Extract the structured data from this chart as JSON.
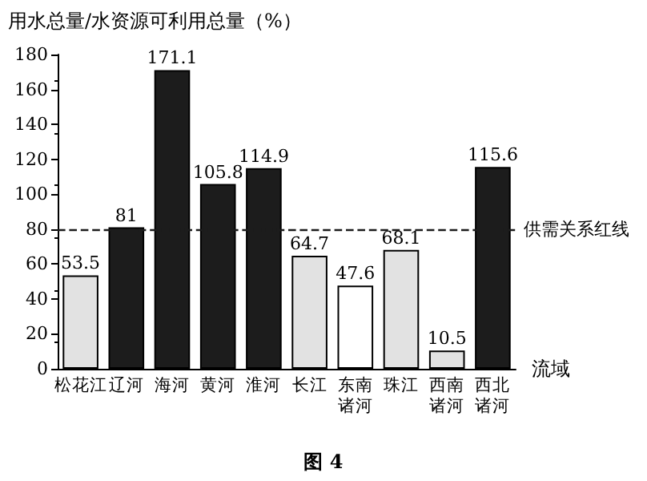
{
  "chart_data": {
    "type": "bar",
    "title": "用水总量/水资源可利用总量（%）",
    "xlabel": "流域",
    "categories": [
      "松花江",
      "辽河",
      "海河",
      "黄河",
      "淮河",
      "长江",
      "东南诸河",
      "珠江",
      "西南诸河",
      "西北诸河"
    ],
    "values": [
      53.5,
      81,
      171.1,
      105.8,
      114.9,
      64.7,
      47.6,
      68.1,
      10.5,
      115.6
    ],
    "colors": [
      "#e2e2e2",
      "#1c1c1c",
      "#1c1c1c",
      "#1c1c1c",
      "#1c1c1c",
      "#e2e2e2",
      "#ffffff",
      "#e2e2e2",
      "#e2e2e2",
      "#1c1c1c"
    ],
    "ylim": [
      0,
      180
    ],
    "yticks": [
      0,
      20,
      40,
      60,
      80,
      100,
      120,
      140,
      160,
      180
    ],
    "data_labels": true,
    "grid": false,
    "ref_lines": [
      {
        "axis": "y",
        "value": 80,
        "label": "供需关系红线",
        "line_style": "dashed",
        "color": "#1c1c1c"
      }
    ],
    "annotations": [
      "图 4"
    ]
  }
}
